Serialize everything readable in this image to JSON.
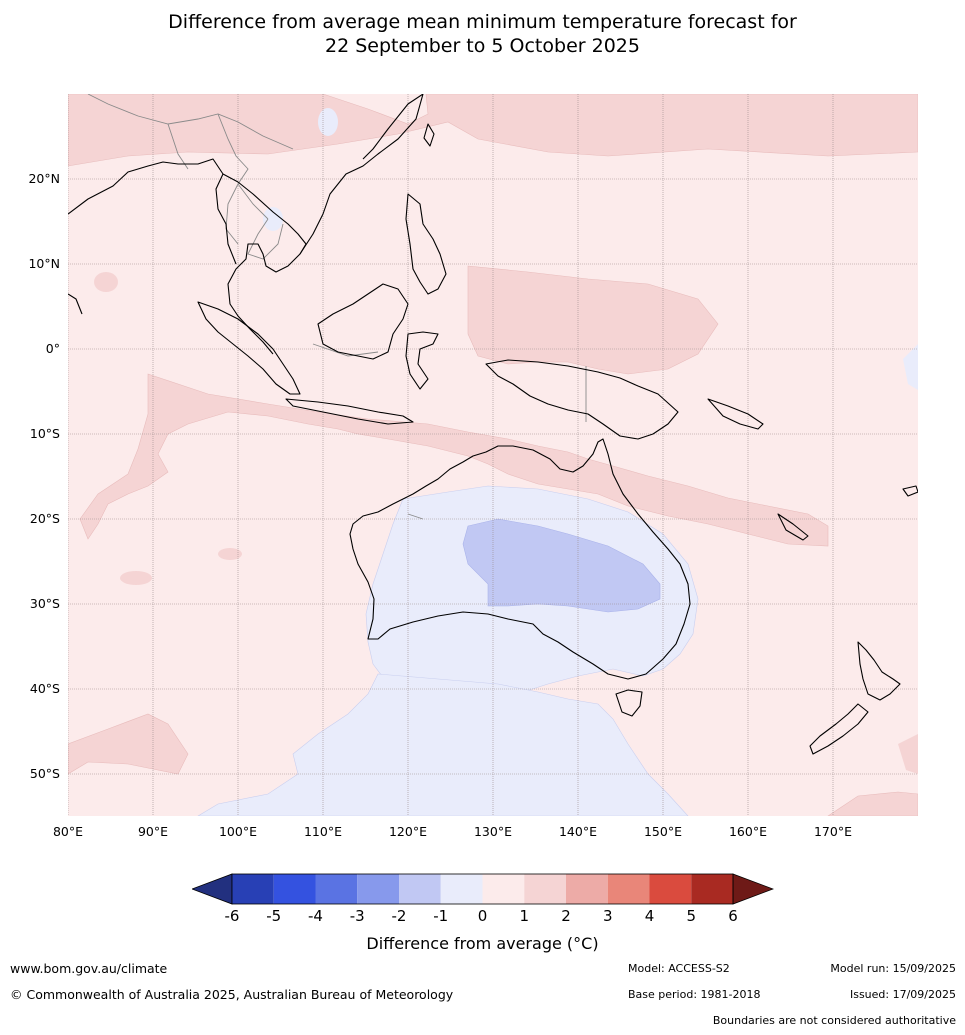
{
  "title": {
    "line1": "Difference from average mean minimum temperature forecast for",
    "line2": "22 September to 5 October 2025"
  },
  "map": {
    "lat_labels": [
      "20°N",
      "10°N",
      "0°",
      "10°S",
      "20°S",
      "30°S",
      "40°S",
      "50°S"
    ],
    "lon_labels": [
      "80°E",
      "90°E",
      "100°E",
      "110°E",
      "120°E",
      "130°E",
      "140°E",
      "150°E",
      "160°E",
      "170°E"
    ],
    "colors": {
      "range_0_1": "#fcebeb",
      "range_1_2": "#f5d4d4",
      "range_m1_0": "#e9ecfb",
      "range_m2_m1": "#c1c8f3",
      "coast": "#000000",
      "borders": "#8a8a8a",
      "grid": "#9a8a8a"
    }
  },
  "colorbar": {
    "ticks": [
      "-6",
      "-5",
      "-4",
      "-3",
      "-2",
      "-1",
      "0",
      "1",
      "2",
      "3",
      "4",
      "5",
      "6"
    ],
    "colors": [
      "#22307f",
      "#2840b5",
      "#3452e0",
      "#5a73e3",
      "#8799ec",
      "#c1c8f3",
      "#e9ecfb",
      "#fcebeb",
      "#f5d4d4",
      "#edaba7",
      "#e98679",
      "#da4b3e",
      "#a92a22",
      "#6e1a17"
    ],
    "label": "Difference from average (°C)"
  },
  "footer": {
    "url": "www.bom.gov.au/climate",
    "copyright": "© Commonwealth of Australia 2025, Australian Bureau of Meteorology",
    "model": "Model: ACCESS-S2",
    "base_period": "Base period: 1981-2018",
    "model_run": "Model run: 15/09/2025",
    "issued": "Issued: 17/09/2025",
    "disclaimer": "Boundaries are not considered authoritative"
  }
}
